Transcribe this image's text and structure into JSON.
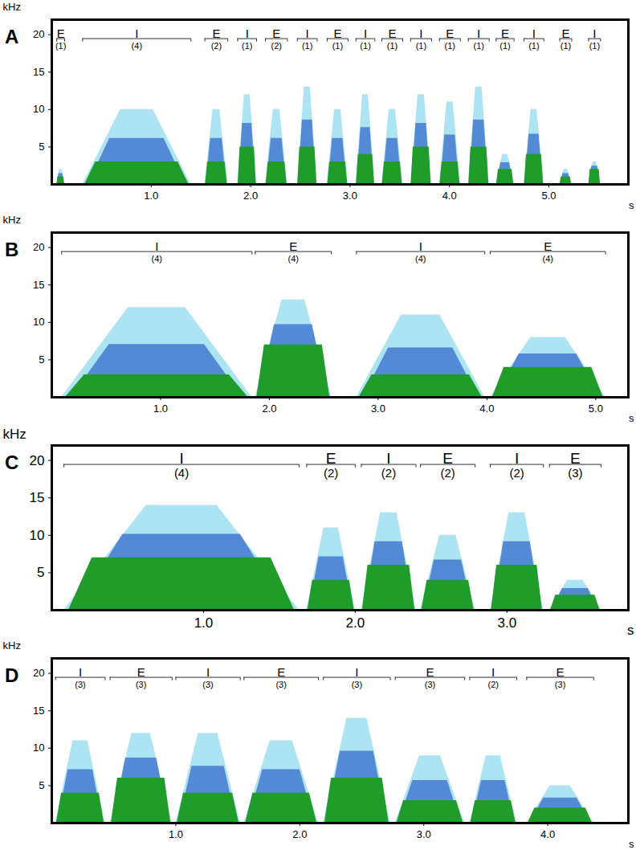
{
  "chart_data": [
    {
      "type": "spectrogram",
      "title": "A",
      "x_label": "s",
      "y_label": "kHz",
      "xlim": [
        0,
        5.8
      ],
      "xticks": [
        1,
        2,
        3,
        4,
        5
      ],
      "ylim": [
        0,
        22
      ],
      "yticks": [
        5,
        10,
        15,
        20
      ],
      "segments": [
        {
          "label": "E",
          "count_label": "(1)",
          "start": 0.05,
          "end": 0.13,
          "peak_khz": 2,
          "dense_khz": 1
        },
        {
          "label": "I",
          "count_label": "(4)",
          "start": 0.31,
          "end": 1.4,
          "peak_khz": 10,
          "dense_khz": 3
        },
        {
          "label": "E",
          "count_label": "(2)",
          "start": 1.54,
          "end": 1.77,
          "peak_khz": 10,
          "dense_khz": 3
        },
        {
          "label": "I",
          "count_label": "(1)",
          "start": 1.87,
          "end": 2.06,
          "peak_khz": 12,
          "dense_khz": 5
        },
        {
          "label": "E",
          "count_label": "(2)",
          "start": 2.15,
          "end": 2.37,
          "peak_khz": 10,
          "dense_khz": 3
        },
        {
          "label": "I",
          "count_label": "(1)",
          "start": 2.47,
          "end": 2.67,
          "peak_khz": 13,
          "dense_khz": 5
        },
        {
          "label": "E",
          "count_label": "(1)",
          "start": 2.77,
          "end": 2.98,
          "peak_khz": 10,
          "dense_khz": 3
        },
        {
          "label": "I",
          "count_label": "(1)",
          "start": 3.06,
          "end": 3.25,
          "peak_khz": 12,
          "dense_khz": 4
        },
        {
          "label": "E",
          "count_label": "(1)",
          "start": 3.32,
          "end": 3.53,
          "peak_khz": 10,
          "dense_khz": 3
        },
        {
          "label": "I",
          "count_label": "(1)",
          "start": 3.61,
          "end": 3.82,
          "peak_khz": 12,
          "dense_khz": 5
        },
        {
          "label": "E",
          "count_label": "(1)",
          "start": 3.9,
          "end": 4.11,
          "peak_khz": 11,
          "dense_khz": 3
        },
        {
          "label": "I",
          "count_label": "(1)",
          "start": 4.19,
          "end": 4.4,
          "peak_khz": 13,
          "dense_khz": 5
        },
        {
          "label": "E",
          "count_label": "(1)",
          "start": 4.47,
          "end": 4.65,
          "peak_khz": 4,
          "dense_khz": 2
        },
        {
          "label": "I",
          "count_label": "(1)",
          "start": 4.75,
          "end": 4.95,
          "peak_khz": 10,
          "dense_khz": 4
        },
        {
          "label": "E",
          "count_label": "(1)",
          "start": 5.11,
          "end": 5.23,
          "peak_khz": 2,
          "dense_khz": 1
        },
        {
          "label": "I",
          "count_label": "(1)",
          "start": 5.4,
          "end": 5.52,
          "peak_khz": 3,
          "dense_khz": 2
        }
      ]
    },
    {
      "type": "spectrogram",
      "title": "B",
      "x_label": "s",
      "y_label": "kHz",
      "xlim": [
        0,
        5.3
      ],
      "xticks": [
        1,
        2,
        3,
        4,
        5
      ],
      "ylim": [
        0,
        22
      ],
      "yticks": [
        5,
        10,
        15,
        20
      ],
      "segments": [
        {
          "label": "I",
          "count_label": "(4)",
          "start": 0.09,
          "end": 1.84,
          "peak_khz": 12,
          "dense_khz": 3
        },
        {
          "label": "E",
          "count_label": "(4)",
          "start": 1.87,
          "end": 2.57,
          "peak_khz": 13,
          "dense_khz": 7
        },
        {
          "label": "I",
          "count_label": "(4)",
          "start": 2.8,
          "end": 3.98,
          "peak_khz": 11,
          "dense_khz": 3
        },
        {
          "label": "E",
          "count_label": "(4)",
          "start": 4.03,
          "end": 5.09,
          "peak_khz": 8,
          "dense_khz": 4
        }
      ]
    },
    {
      "type": "spectrogram",
      "title": "C",
      "x_label": "s",
      "y_label": "kHz",
      "xlim": [
        0,
        3.8
      ],
      "xticks": [
        1,
        2,
        3
      ],
      "ylim": [
        0,
        22
      ],
      "yticks": [
        5,
        10,
        15,
        20
      ],
      "segments": [
        {
          "label": "I",
          "count_label": "(4)",
          "start": 0.08,
          "end": 1.63,
          "peak_khz": 14,
          "dense_khz": 7
        },
        {
          "label": "E",
          "count_label": "(2)",
          "start": 1.68,
          "end": 2.0,
          "peak_khz": 11,
          "dense_khz": 4
        },
        {
          "label": "I",
          "count_label": "(2)",
          "start": 2.04,
          "end": 2.4,
          "peak_khz": 13,
          "dense_khz": 6
        },
        {
          "label": "E",
          "count_label": "(2)",
          "start": 2.43,
          "end": 2.79,
          "peak_khz": 10,
          "dense_khz": 4
        },
        {
          "label": "I",
          "count_label": "(2)",
          "start": 2.89,
          "end": 3.24,
          "peak_khz": 13,
          "dense_khz": 6
        },
        {
          "label": "E",
          "count_label": "(3)",
          "start": 3.28,
          "end": 3.62,
          "peak_khz": 4,
          "dense_khz": 2
        }
      ]
    },
    {
      "type": "spectrogram",
      "title": "D",
      "x_label": "s",
      "y_label": "kHz",
      "xlim": [
        0,
        4.65
      ],
      "xticks": [
        1,
        2,
        3,
        4
      ],
      "ylim": [
        0,
        22
      ],
      "yticks": [
        5,
        10,
        15,
        20
      ],
      "segments": [
        {
          "label": "I",
          "count_label": "(3)",
          "start": 0.03,
          "end": 0.43,
          "peak_khz": 11,
          "dense_khz": 4
        },
        {
          "label": "E",
          "count_label": "(3)",
          "start": 0.47,
          "end": 0.97,
          "peak_khz": 12,
          "dense_khz": 6
        },
        {
          "label": "I",
          "count_label": "(3)",
          "start": 1.0,
          "end": 1.52,
          "peak_khz": 12,
          "dense_khz": 4
        },
        {
          "label": "E",
          "count_label": "(3)",
          "start": 1.55,
          "end": 2.15,
          "peak_khz": 11,
          "dense_khz": 4
        },
        {
          "label": "I",
          "count_label": "(3)",
          "start": 2.19,
          "end": 2.73,
          "peak_khz": 14,
          "dense_khz": 6
        },
        {
          "label": "E",
          "count_label": "(3)",
          "start": 2.77,
          "end": 3.33,
          "peak_khz": 9,
          "dense_khz": 3
        },
        {
          "label": "I",
          "count_label": "(2)",
          "start": 3.37,
          "end": 3.75,
          "peak_khz": 9,
          "dense_khz": 3
        },
        {
          "label": "E",
          "count_label": "(3)",
          "start": 3.83,
          "end": 4.37,
          "peak_khz": 5,
          "dense_khz": 2
        }
      ]
    }
  ]
}
